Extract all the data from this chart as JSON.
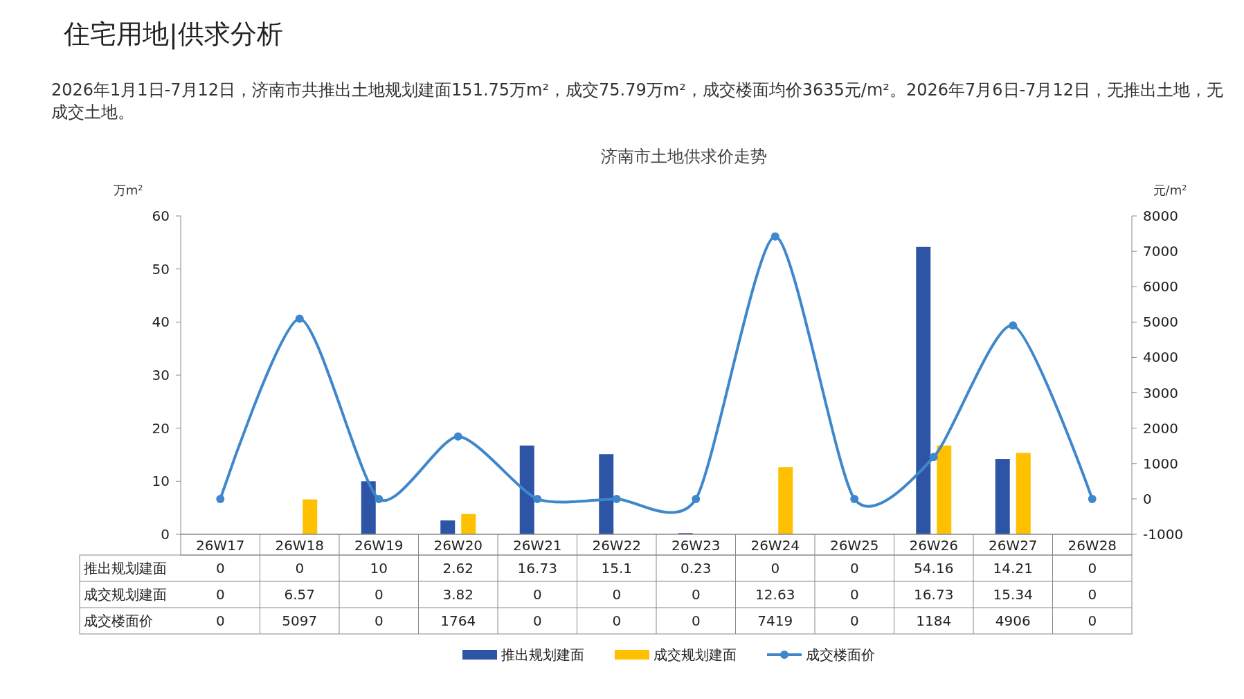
{
  "chart_data": {
    "type": "bar",
    "title": "济南市土地供求价走势",
    "subtitle": "2026年1月1日-7月12日，济南市共推出土地规划建面151.75万m²，成交75.79万m²，成交楼面均价3635元/m²。2026年7月6日-7月12日，无推出土地，无成交土地。",
    "annotations": [
      "住宅用地|供求分析"
    ],
    "ylabel": "万m²",
    "y2label": "元/m²",
    "categories": [
      "26W17",
      "26W18",
      "26W19",
      "26W20",
      "26W21",
      "26W22",
      "26W23",
      "26W24",
      "26W25",
      "26W26",
      "26W27",
      "26W28"
    ],
    "series": [
      {
        "name": "推出规划建面",
        "color": "#2e55a5",
        "values": [
          0,
          0,
          10,
          2.62,
          16.73,
          15.1,
          0.23,
          0,
          0,
          54.16,
          14.21,
          0
        ]
      },
      {
        "name": "成交规划建面",
        "color": "#ffc000",
        "values": [
          0,
          6.57,
          0,
          3.82,
          0,
          0,
          0,
          12.63,
          0,
          16.73,
          15.34,
          0
        ]
      },
      {
        "name": "成交楼面价",
        "type": "line",
        "axis": "y2",
        "color": "#3f87cc",
        "marker": "circle",
        "values": [
          0,
          5097,
          0,
          1764,
          0,
          0,
          0,
          7419,
          0,
          1184,
          4906,
          0
        ]
      }
    ],
    "ylim": [
      0,
      60
    ],
    "yticks": [
      0,
      10,
      20,
      30,
      40,
      50,
      60
    ],
    "y2lim": [
      -1000,
      8000
    ],
    "y2ticks": [
      -1000,
      0,
      1000,
      2000,
      3000,
      4000,
      5000,
      6000,
      7000,
      8000
    ],
    "data_labels": true,
    "grid": false,
    "legend": "bottom"
  }
}
